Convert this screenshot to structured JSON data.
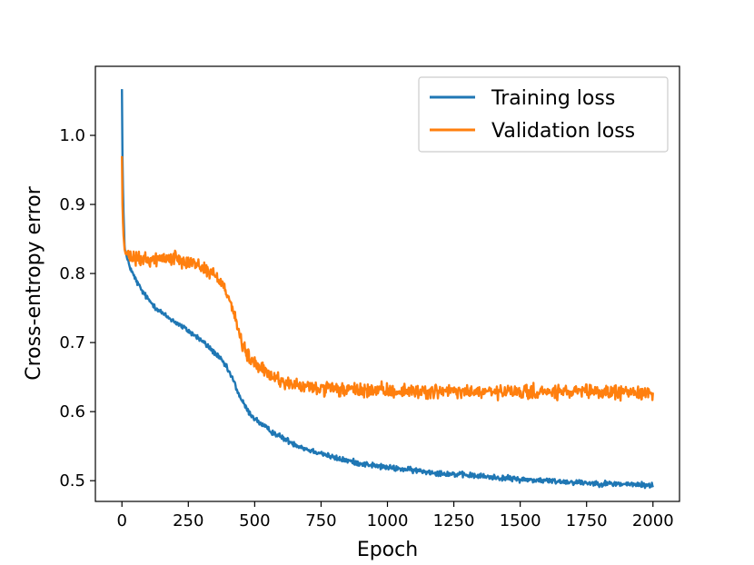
{
  "chart_data": {
    "type": "line",
    "title": "",
    "xlabel": "Epoch",
    "ylabel": "Cross-entropy error",
    "xlim": [
      -100,
      2100
    ],
    "ylim": [
      0.47,
      1.1
    ],
    "xticks": [
      0,
      250,
      500,
      750,
      1000,
      1250,
      1500,
      1750,
      2000
    ],
    "yticks": [
      0.5,
      0.6,
      0.7,
      0.8,
      0.9,
      1.0
    ],
    "xtick_labels": [
      "0",
      "250",
      "500",
      "750",
      "1000",
      "1250",
      "1500",
      "1750",
      "2000"
    ],
    "ytick_labels": [
      "0.5",
      "0.6",
      "0.7",
      "0.8",
      "0.9",
      "1.0"
    ],
    "legend_position": "top-right",
    "grid": false,
    "series": [
      {
        "name": "Training loss",
        "color": "#1f77b4",
        "noise": 0.002,
        "x": [
          0,
          2,
          5,
          10,
          20,
          40,
          60,
          80,
          100,
          130,
          160,
          200,
          250,
          300,
          350,
          380,
          400,
          420,
          440,
          460,
          480,
          500,
          530,
          560,
          600,
          650,
          700,
          750,
          800,
          900,
          1000,
          1100,
          1200,
          1300,
          1400,
          1500,
          1600,
          1700,
          1800,
          1900,
          2000
        ],
        "y": [
          1.067,
          0.97,
          0.9,
          0.84,
          0.82,
          0.8,
          0.785,
          0.772,
          0.762,
          0.75,
          0.74,
          0.73,
          0.717,
          0.703,
          0.685,
          0.672,
          0.66,
          0.645,
          0.625,
          0.61,
          0.598,
          0.59,
          0.58,
          0.572,
          0.563,
          0.553,
          0.545,
          0.54,
          0.533,
          0.525,
          0.519,
          0.515,
          0.511,
          0.508,
          0.505,
          0.502,
          0.5,
          0.498,
          0.496,
          0.495,
          0.493
        ]
      },
      {
        "name": "Validation loss",
        "color": "#ff7f0e",
        "noise": 0.005,
        "x": [
          0,
          2,
          5,
          10,
          20,
          40,
          60,
          100,
          150,
          200,
          250,
          300,
          350,
          380,
          400,
          420,
          440,
          460,
          480,
          500,
          530,
          560,
          600,
          650,
          700,
          800,
          900,
          1000,
          1200,
          1400,
          1600,
          1800,
          2000
        ],
        "y": [
          0.97,
          0.9,
          0.86,
          0.835,
          0.825,
          0.822,
          0.82,
          0.82,
          0.822,
          0.823,
          0.818,
          0.81,
          0.797,
          0.785,
          0.77,
          0.745,
          0.715,
          0.69,
          0.677,
          0.67,
          0.66,
          0.652,
          0.645,
          0.638,
          0.635,
          0.632,
          0.631,
          0.63,
          0.629,
          0.628,
          0.628,
          0.628,
          0.628
        ]
      }
    ]
  }
}
